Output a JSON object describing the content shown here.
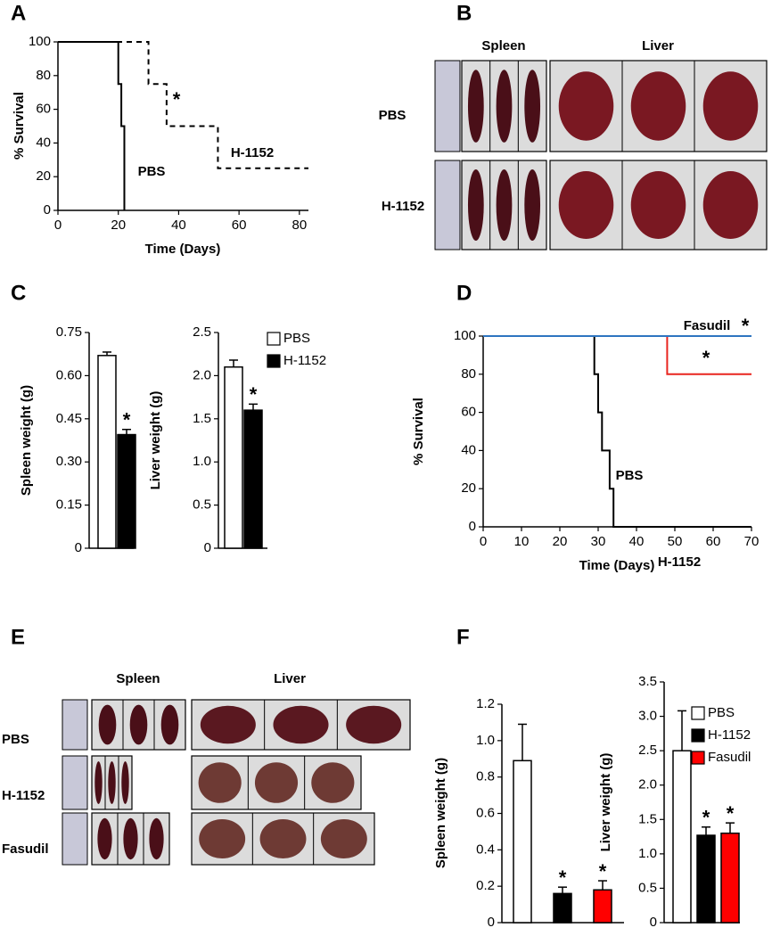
{
  "panel_letters": [
    "A",
    "B",
    "C",
    "D",
    "E",
    "F"
  ],
  "chart_data": [
    {
      "type": "line",
      "xlabel": "Time (Days)",
      "ylabel": "% Survival",
      "xlim": [
        0,
        83
      ],
      "xticks": [
        0,
        20,
        40,
        60,
        80
      ],
      "ylim": [
        0,
        100
      ],
      "yticks": [
        0,
        20,
        40,
        60,
        80,
        100
      ],
      "series": [
        {
          "name": "PBS",
          "color": "#000000",
          "line_style": "solid",
          "x": [
            0,
            20,
            20,
            21,
            21,
            22,
            22
          ],
          "values": [
            100,
            100,
            75,
            75,
            50,
            50,
            0
          ]
        },
        {
          "name": "H-1152",
          "color": "#000000",
          "line_style": "dashed",
          "x": [
            0,
            30,
            30,
            36,
            36,
            53,
            53,
            83
          ],
          "values": [
            100,
            100,
            75,
            75,
            50,
            50,
            25,
            25
          ]
        }
      ],
      "annotations": [
        "*"
      ]
    },
    {
      "type": "bar",
      "ylabel": "Spleen weight (g)",
      "ylim": [
        0,
        0.75
      ],
      "yticks": [
        0,
        0.15,
        {
          "value": 0.3,
          "label": "0.30"
        },
        0.45,
        {
          "value": 0.6,
          "label": "0.60"
        },
        0.75
      ],
      "series": [
        {
          "color": "#ffffff",
          "values": [
            0.67
          ],
          "errors": [
            0.012
          ]
        },
        {
          "color": "#000000",
          "values": [
            0.395
          ],
          "errors": [
            0.018
          ]
        }
      ],
      "annotations": [
        "*"
      ]
    },
    {
      "type": "bar",
      "ylabel": "Liver weight (g)",
      "ylim": [
        0,
        2.5
      ],
      "yticks": [
        0,
        0.5,
        {
          "value": 1.0,
          "label": "1.0"
        },
        1.5,
        {
          "value": 2.0,
          "label": "2.0"
        },
        2.5
      ],
      "legend": true,
      "series": [
        {
          "name": "PBS",
          "color": "#ffffff",
          "values": [
            2.1
          ],
          "errors": [
            0.08
          ]
        },
        {
          "name": "H-1152",
          "color": "#000000",
          "values": [
            1.6
          ],
          "errors": [
            0.07
          ]
        }
      ],
      "annotations": [
        "*"
      ]
    },
    {
      "type": "line",
      "xlabel": "Time (Days)",
      "ylabel": "% Survival",
      "xlim": [
        0,
        70
      ],
      "xticks": [
        0,
        10,
        20,
        30,
        40,
        50,
        60,
        70
      ],
      "ylim": [
        0,
        100
      ],
      "yticks": [
        0,
        20,
        40,
        60,
        80,
        100
      ],
      "series": [
        {
          "name": "PBS",
          "color": "#000000",
          "line_style": "solid",
          "x": [
            0,
            29,
            29,
            30,
            30,
            31,
            31,
            33,
            33,
            34,
            34,
            70
          ],
          "values": [
            100,
            100,
            80,
            80,
            60,
            60,
            40,
            40,
            20,
            20,
            0,
            0
          ]
        },
        {
          "name": "H-1152",
          "color": "#e8251f",
          "line_style": "solid",
          "x": [
            0,
            48,
            48,
            70
          ],
          "values": [
            100,
            100,
            80,
            80
          ]
        },
        {
          "name": "Fasudil",
          "color": "#2e75c0",
          "line_style": "solid",
          "x": [
            0,
            70
          ],
          "values": [
            100,
            100
          ]
        }
      ],
      "annotations": [
        "*",
        "*"
      ]
    },
    {
      "type": "bar",
      "ylabel": "Spleen weight (g)",
      "ylim": [
        0,
        1.2
      ],
      "yticks": [
        0,
        0.2,
        0.4,
        0.6,
        0.8,
        {
          "value": 1.0,
          "label": "1.0"
        },
        1.2
      ],
      "series": [
        {
          "color": "#ffffff",
          "values": [
            0.89
          ],
          "errors": [
            0.2
          ]
        },
        {
          "color": "#000000",
          "values": [
            0.16
          ],
          "errors": [
            0.035
          ]
        },
        {
          "color": "#ff0000",
          "values": [
            0.18
          ],
          "errors": [
            0.05
          ]
        }
      ],
      "annotations": [
        "*",
        "*"
      ]
    },
    {
      "type": "bar",
      "ylabel": "Liver weight (g)",
      "ylim": [
        0,
        3.5
      ],
      "yticks": [
        0,
        0.5,
        {
          "value": 1.0,
          "label": "1.0"
        },
        1.5,
        {
          "value": 2.0,
          "label": "2.0"
        },
        2.5,
        {
          "value": 3.0,
          "label": "3.0"
        },
        3.5
      ],
      "legend": true,
      "series": [
        {
          "name": "PBS",
          "color": "#ffffff",
          "values": [
            2.5
          ],
          "errors": [
            0.58
          ]
        },
        {
          "name": "H-1152",
          "color": "#000000",
          "values": [
            1.27
          ],
          "errors": [
            0.12
          ]
        },
        {
          "name": "Fasudil",
          "color": "#ff0000",
          "values": [
            1.3
          ],
          "errors": [
            0.15
          ]
        }
      ],
      "annotations": [
        "*",
        "*"
      ]
    }
  ],
  "photo_panels": [
    {
      "column_labels": [
        "Spleen",
        "Liver"
      ],
      "row_labels": [
        "PBS",
        "H-1152"
      ]
    },
    {
      "column_labels": [
        "Spleen",
        "Liver"
      ],
      "row_labels": [
        "PBS",
        "H-1152",
        "Fasudil"
      ]
    }
  ]
}
